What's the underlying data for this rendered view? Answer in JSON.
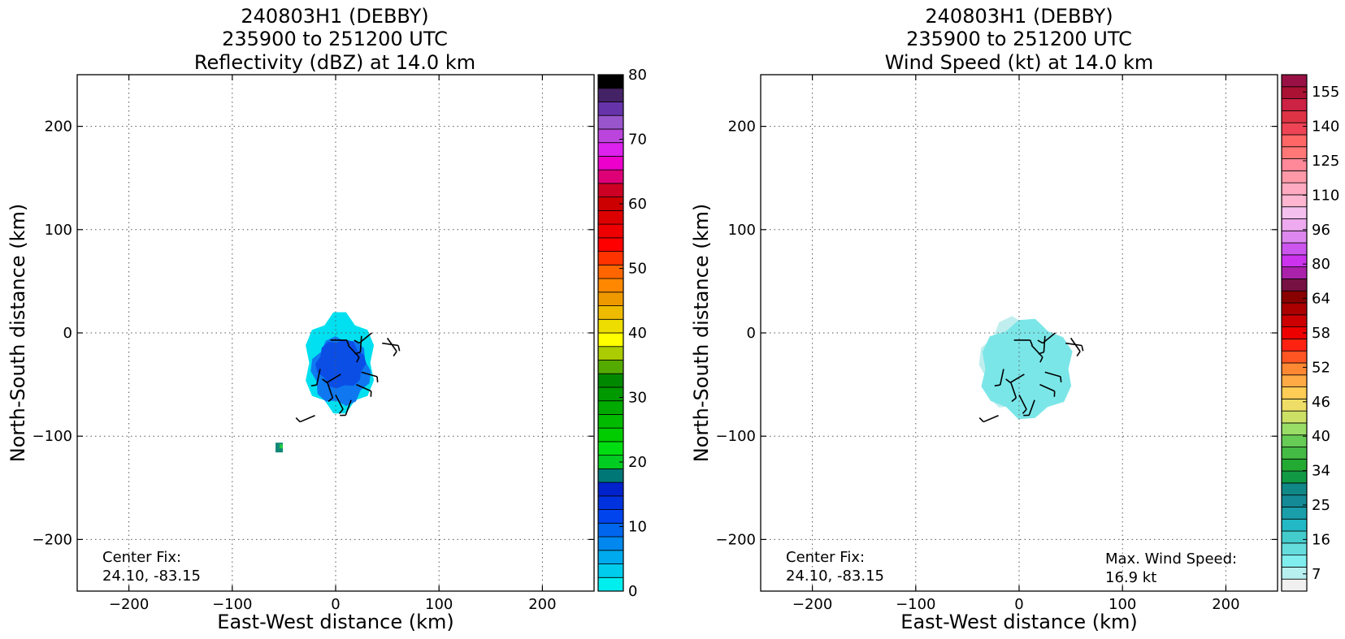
{
  "chart_data": [
    {
      "type": "heatmap",
      "title": [
        "240803H1 (DEBBY)",
        "235900 to 251200 UTC",
        "Reflectivity (dBZ) at 14.0 km"
      ],
      "xlabel": "East-West distance (km)",
      "ylabel": "North-South distance (km)",
      "xlim": [
        -250,
        250
      ],
      "ylim": [
        -250,
        250
      ],
      "xticks": [
        -200,
        -100,
        0,
        100,
        200
      ],
      "yticks": [
        -200,
        -100,
        0,
        100,
        200
      ],
      "grid": true,
      "annotation": {
        "label": "Center Fix:",
        "value": "24.10, -83.15"
      },
      "colorbar": {
        "min": 0,
        "max": 80,
        "step": 2.5,
        "tick_labels": [
          "0",
          "10",
          "20",
          "30",
          "40",
          "50",
          "60",
          "70",
          "80"
        ],
        "colors": [
          "#00eeee",
          "#00ccee",
          "#00aaee",
          "#0088ee",
          "#0066ee",
          "#0044ee",
          "#0033dd",
          "#0022cc",
          "#007777",
          "#00cc22",
          "#00dd11",
          "#00cc00",
          "#00bb00",
          "#00aa00",
          "#009900",
          "#008800",
          "#55aa00",
          "#aacc00",
          "#ffff00",
          "#eedd00",
          "#eebb00",
          "#ee9900",
          "#ff8800",
          "#ff6600",
          "#ff3300",
          "#ff0000",
          "#ee0000",
          "#dd0000",
          "#cc0000",
          "#cc0022",
          "#dd0077",
          "#ee00cc",
          "#dd22ee",
          "#bb44dd",
          "#9955cc",
          "#6633aa",
          "#442266",
          "#000000"
        ]
      },
      "echo_regions": [
        {
          "level": "cyan",
          "color": "#00e0f0",
          "x": [
            -32,
            40
          ],
          "y": [
            -80,
            22
          ]
        },
        {
          "level": "blue",
          "color": "#0f78f0",
          "x": [
            -25,
            35
          ],
          "y": [
            -72,
            -2
          ]
        },
        {
          "level": "deep-blue",
          "color": "#0a4ee6",
          "x": [
            -20,
            30
          ],
          "y": [
            -55,
            -5
          ]
        }
      ],
      "isolated_echo": {
        "x": -55,
        "y": -111
      },
      "wind_barbs": [
        {
          "x": -5,
          "y": -7
        },
        {
          "x": 12,
          "y": -12
        },
        {
          "x": 25,
          "y": -3
        },
        {
          "x": 35,
          "y": 0
        },
        {
          "x": 45,
          "y": -10
        },
        {
          "x": 50,
          "y": -5
        },
        {
          "x": -15,
          "y": -35
        },
        {
          "x": 5,
          "y": -40
        },
        {
          "x": 25,
          "y": -38
        },
        {
          "x": 0,
          "y": -60
        },
        {
          "x": 15,
          "y": -65
        },
        {
          "x": -20,
          "y": -80
        },
        {
          "x": 20,
          "y": -50
        },
        {
          "x": -8,
          "y": -48
        }
      ]
    },
    {
      "type": "heatmap",
      "title": [
        "240803H1 (DEBBY)",
        "235900 to 251200 UTC",
        "Wind Speed (kt) at 14.0 km"
      ],
      "xlabel": "East-West distance (km)",
      "ylabel": "North-South distance (km)",
      "xlim": [
        -250,
        250
      ],
      "ylim": [
        -250,
        250
      ],
      "xticks": [
        -200,
        -100,
        0,
        100,
        200
      ],
      "yticks": [
        -200,
        -100,
        0,
        100,
        200
      ],
      "grid": true,
      "annotation": {
        "label": "Center Fix:",
        "value": "24.10, -83.15"
      },
      "max_wind": {
        "label": "Max. Wind Speed:",
        "value": "16.9 kt"
      },
      "colorbar": {
        "tick_labels": [
          "7",
          "16",
          "25",
          "34",
          "40",
          "46",
          "52",
          "58",
          "64",
          "80",
          "96",
          "110",
          "125",
          "140",
          "155"
        ],
        "colors": [
          "#f0f0f0",
          "#b8f0f0",
          "#80eeee",
          "#66dddd",
          "#44cccc",
          "#22b8c4",
          "#1a9eaa",
          "#138a95",
          "#118888",
          "#119944",
          "#22aa33",
          "#44bb44",
          "#66cc55",
          "#99dd66",
          "#cce066",
          "#eedd66",
          "#ffcc55",
          "#ffaa44",
          "#ff8833",
          "#ff5522",
          "#ff2211",
          "#ee0000",
          "#cc0000",
          "#aa0000",
          "#880000",
          "#771144",
          "#aa22aa",
          "#cc33ee",
          "#cc55ee",
          "#dd88ee",
          "#eeaaee",
          "#f4c0ee",
          "#ffb6d0",
          "#ffaac0",
          "#ff99a8",
          "#ff8899",
          "#ff7777",
          "#ff6666",
          "#ee4455",
          "#dd3344",
          "#cc2244",
          "#aa1133",
          "#991144"
        ]
      },
      "wind_regions": [
        {
          "level": "pale",
          "color": "#c0eeee",
          "x": [
            -40,
            40
          ],
          "y": [
            -80,
            18
          ]
        },
        {
          "level": "light-grey",
          "color": "#eeeeee",
          "x": [
            -10,
            35
          ],
          "y": [
            -75,
            -5
          ]
        },
        {
          "level": "cyan",
          "color": "#7ae6e8",
          "x": [
            -40,
            55
          ],
          "y": [
            -85,
            15
          ]
        }
      ],
      "wind_barbs": [
        {
          "x": -5,
          "y": -7
        },
        {
          "x": 12,
          "y": -12
        },
        {
          "x": 25,
          "y": -3
        },
        {
          "x": 35,
          "y": 0
        },
        {
          "x": 45,
          "y": -10
        },
        {
          "x": 50,
          "y": -5
        },
        {
          "x": -15,
          "y": -35
        },
        {
          "x": 5,
          "y": -40
        },
        {
          "x": 25,
          "y": -38
        },
        {
          "x": 0,
          "y": -60
        },
        {
          "x": 15,
          "y": -65
        },
        {
          "x": -20,
          "y": -80
        },
        {
          "x": 20,
          "y": -50
        },
        {
          "x": -8,
          "y": -48
        }
      ]
    }
  ]
}
